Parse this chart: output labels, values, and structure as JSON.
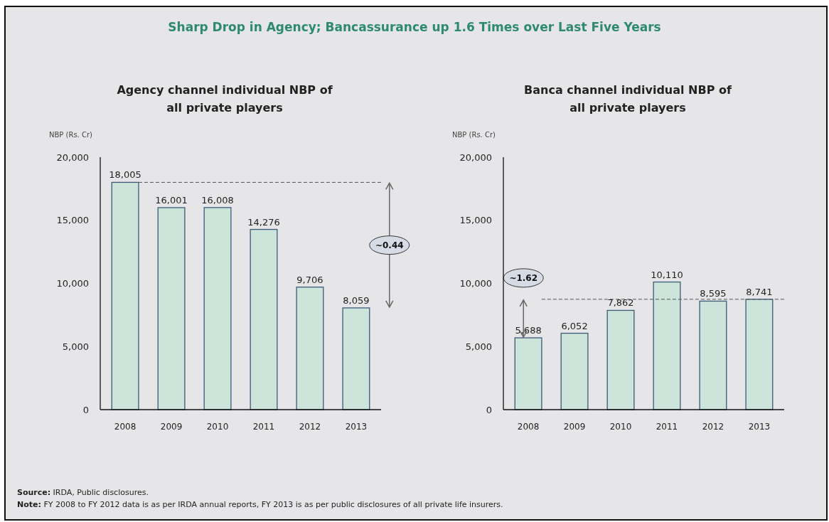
{
  "chart_data": [
    {
      "type": "other",
      "title": "Sharp Drop in Agency; Bancassurance up 1.6 Times over Last Five Years",
      "annotations": [
        "Source: IRDA, Public disclosures.",
        "Note: FY 2008 to FY 2012 data is as per IRDA annual reports, FY 2013 is as per public disclosures of all private life insurers."
      ]
    },
    {
      "type": "bar",
      "title": "Agency channel individual NBP of all private players",
      "ylabel": "NBP (Rs. Cr)",
      "categories": [
        "2008",
        "2009",
        "2010",
        "2011",
        "2012",
        "2013"
      ],
      "values": [
        18005,
        16001,
        16008,
        14276,
        9706,
        8059
      ],
      "value_labels": [
        "18,005",
        "16,001",
        "16,008",
        "14,276",
        "9,706",
        "8,059"
      ],
      "color": "#cde4da",
      "ylim": [
        0,
        20000
      ],
      "yticks": [
        {
          "value": 0,
          "label": "0"
        },
        {
          "value": 5000,
          "label": "5,000"
        },
        {
          "value": 10000,
          "label": "10,000"
        },
        {
          "value": 15000,
          "label": "15,000"
        },
        {
          "value": 20000,
          "label": "20,000"
        }
      ],
      "grid": false,
      "ref_lines": [
        {
          "axis": "y",
          "value": 18005,
          "line_style": "dashed"
        }
      ],
      "annotations": [
        "~0.44"
      ]
    },
    {
      "type": "bar",
      "title": "Banca channel individual NBP of all private players",
      "ylabel": "NBP (Rs. Cr)",
      "categories": [
        "2008",
        "2009",
        "2010",
        "2011",
        "2012",
        "2013"
      ],
      "values": [
        5688,
        6052,
        7862,
        10110,
        8595,
        8741
      ],
      "value_labels": [
        "5,688",
        "6,052",
        "7,862",
        "10,110",
        "8,595",
        "8,741"
      ],
      "color": "#cde4da",
      "ylim": [
        0,
        20000
      ],
      "yticks": [
        {
          "value": 0,
          "label": "0"
        },
        {
          "value": 5000,
          "label": "5,000"
        },
        {
          "value": 10000,
          "label": "10,000"
        },
        {
          "value": 15000,
          "label": "15,000"
        },
        {
          "value": 20000,
          "label": "20,000"
        }
      ],
      "grid": false,
      "ref_lines": [
        {
          "axis": "y",
          "value": 8741,
          "line_style": "dashed"
        }
      ],
      "annotations": [
        "~1.62"
      ]
    }
  ]
}
